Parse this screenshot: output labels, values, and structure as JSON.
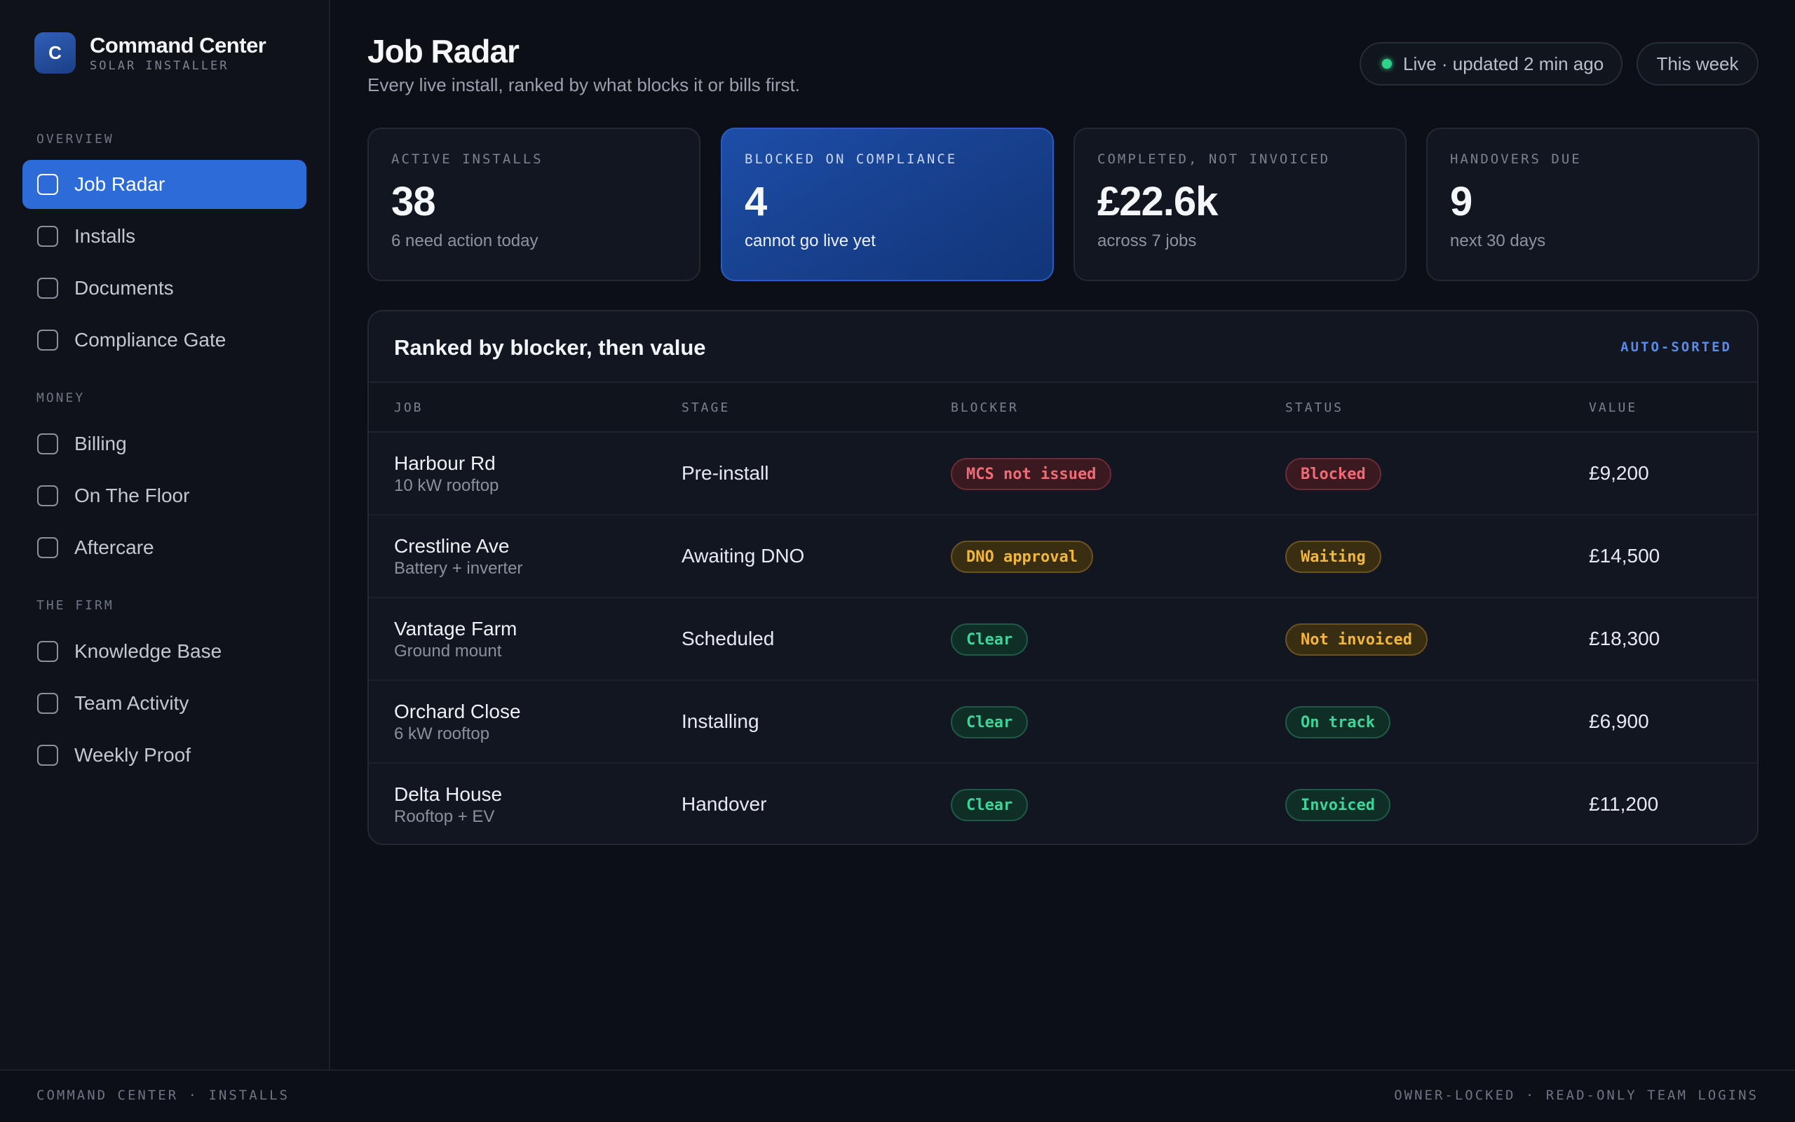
{
  "brand": {
    "logo_letter": "C",
    "title": "Command Center",
    "subtitle": "SOLAR INSTALLER"
  },
  "sidebar": {
    "sections": [
      {
        "label": "OVERVIEW",
        "items": [
          {
            "label": "Job Radar",
            "active": true
          },
          {
            "label": "Installs"
          },
          {
            "label": "Documents"
          },
          {
            "label": "Compliance Gate"
          }
        ]
      },
      {
        "label": "MONEY",
        "items": [
          {
            "label": "Billing"
          },
          {
            "label": "On The Floor"
          },
          {
            "label": "Aftercare"
          }
        ]
      },
      {
        "label": "THE FIRM",
        "items": [
          {
            "label": "Knowledge Base"
          },
          {
            "label": "Team Activity"
          },
          {
            "label": "Weekly Proof"
          }
        ]
      }
    ]
  },
  "header": {
    "title": "Job Radar",
    "subtitle": "Every live install, ranked by what blocks it or bills first.",
    "live_status": "Live · updated 2 min ago",
    "period": "This week"
  },
  "kpis": [
    {
      "label": "ACTIVE INSTALLS",
      "value": "38",
      "sub": "6 need action today"
    },
    {
      "label": "BLOCKED ON COMPLIANCE",
      "value": "4",
      "sub": "cannot go live yet"
    },
    {
      "label": "COMPLETED, NOT INVOICED",
      "value": "£22.6k",
      "sub": "across 7 jobs"
    },
    {
      "label": "HANDOVERS DUE",
      "value": "9",
      "sub": "next 30 days"
    }
  ],
  "table": {
    "title": "Ranked by blocker, then value",
    "tag": "AUTO-SORTED",
    "columns": [
      "JOB",
      "STAGE",
      "BLOCKER",
      "STATUS",
      "VALUE"
    ],
    "rows": [
      {
        "job": "Harbour Rd",
        "detail": "10 kW rooftop",
        "stage": "Pre-install",
        "blocker": "MCS not issued",
        "status": "Blocked",
        "value": "£9,200"
      },
      {
        "job": "Crestline Ave",
        "detail": "Battery + inverter",
        "stage": "Awaiting DNO",
        "blocker": "DNO approval",
        "status": "Waiting",
        "value": "£14,500"
      },
      {
        "job": "Vantage Farm",
        "detail": "Ground mount",
        "stage": "Scheduled",
        "blocker": "Clear",
        "status": "Not invoiced",
        "value": "£18,300"
      },
      {
        "job": "Orchard Close",
        "detail": "6 kW rooftop",
        "stage": "Installing",
        "blocker": "Clear",
        "status": "On track",
        "value": "£6,900"
      },
      {
        "job": "Delta House",
        "detail": "Rooftop + EV",
        "stage": "Handover",
        "blocker": "Clear",
        "status": "Invoiced",
        "value": "£11,200"
      }
    ]
  },
  "footer": {
    "left": "COMMAND CENTER · INSTALLS",
    "right": "OWNER-LOCKED · READ-ONLY TEAM LOGINS"
  },
  "colors": {
    "accent": "#2d6bd8",
    "danger": "#ef6b75",
    "warning": "#f2b73a",
    "success": "#3fd49a",
    "live": "#2fd28a"
  }
}
